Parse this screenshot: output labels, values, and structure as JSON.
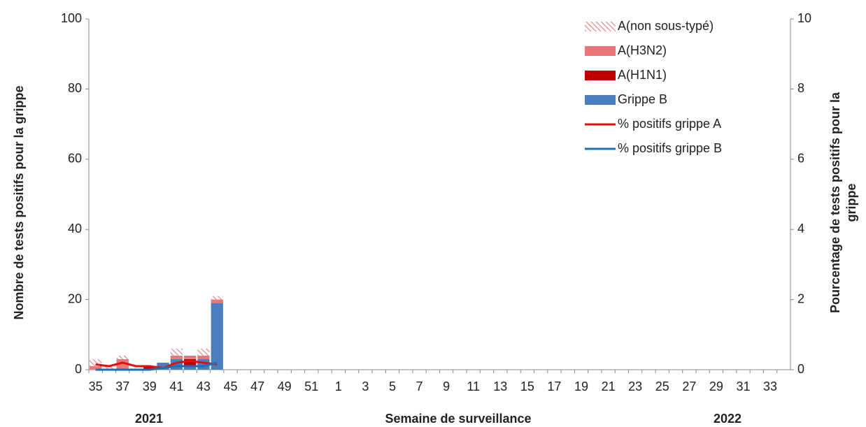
{
  "chart_data": {
    "type": "stacked-bar-line",
    "y_label": "Nombre de tests positifs pour la grippe",
    "y2_label": "Pourcentage de tests positifs pour la grippe",
    "x_label": "Semaine de surveillance",
    "annotations": [
      "2021",
      "2022"
    ],
    "categories": [
      "35",
      null,
      "37",
      null,
      "39",
      null,
      "41",
      null,
      "43",
      null,
      "45",
      null,
      "47",
      null,
      "49",
      null,
      "51",
      null,
      "1",
      null,
      "3",
      null,
      "5",
      null,
      "7",
      null,
      "9",
      null,
      "11",
      null,
      "13",
      null,
      "15",
      null,
      "17",
      null,
      "19",
      null,
      "21",
      null,
      "23",
      null,
      "25",
      null,
      "27",
      null,
      "29",
      null,
      "31",
      null,
      "33",
      null
    ],
    "series": [
      {
        "name": "A(non sous-typé)",
        "color": "#e89a9a",
        "hatch": true,
        "values": [
          2,
          1,
          1,
          0,
          0,
          0,
          2,
          0,
          2,
          1,
          null,
          null,
          null,
          null,
          null,
          null,
          null,
          null,
          null,
          null,
          null,
          null,
          null,
          null,
          null,
          null,
          null,
          null,
          null,
          null,
          null,
          null,
          null,
          null,
          null,
          null,
          null,
          null,
          null,
          null,
          null,
          null,
          null,
          null,
          null,
          null,
          null,
          null,
          null,
          null,
          null,
          null
        ]
      },
      {
        "name": "A(H3N2)",
        "color": "#e87878",
        "values": [
          1,
          0,
          3,
          0,
          0,
          0,
          1,
          1,
          1,
          1,
          null,
          null,
          null,
          null,
          null,
          null,
          null,
          null,
          null,
          null,
          null,
          null,
          null,
          null,
          null,
          null,
          null,
          null,
          null,
          null,
          null,
          null,
          null,
          null,
          null,
          null,
          null,
          null,
          null,
          null,
          null,
          null,
          null,
          null,
          null,
          null,
          null,
          null,
          null,
          null,
          null,
          null
        ]
      },
      {
        "name": "A(H1N1)",
        "color": "#c00000",
        "values": [
          0,
          0,
          0,
          0,
          1,
          0,
          0,
          2,
          0,
          0,
          null,
          null,
          null,
          null,
          null,
          null,
          null,
          null,
          null,
          null,
          null,
          null,
          null,
          null,
          null,
          null,
          null,
          null,
          null,
          null,
          null,
          null,
          null,
          null,
          null,
          null,
          null,
          null,
          null,
          null,
          null,
          null,
          null,
          null,
          null,
          null,
          null,
          null,
          null,
          null,
          null,
          null
        ]
      },
      {
        "name": "Grippe B",
        "color": "#4a7ebf",
        "values": [
          0,
          0,
          0,
          0,
          0,
          2,
          3,
          1,
          3,
          19,
          null,
          null,
          null,
          null,
          null,
          null,
          null,
          null,
          null,
          null,
          null,
          null,
          null,
          null,
          null,
          null,
          null,
          null,
          null,
          null,
          null,
          null,
          null,
          null,
          null,
          null,
          null,
          null,
          null,
          null,
          null,
          null,
          null,
          null,
          null,
          null,
          null,
          null,
          null,
          null,
          null,
          null
        ]
      },
      {
        "name": "% positifs grippe A",
        "color": "#e01010",
        "kind": "line",
        "axis": "y2",
        "values": [
          0.15,
          0.1,
          0.2,
          0.1,
          0.1,
          0.05,
          0.2,
          0.25,
          0.2,
          0.15,
          null,
          null,
          null,
          null,
          null,
          null,
          null,
          null,
          null,
          null,
          null,
          null,
          null,
          null,
          null,
          null,
          null,
          null,
          null,
          null,
          null,
          null,
          null,
          null,
          null,
          null,
          null,
          null,
          null,
          null,
          null,
          null,
          null,
          null,
          null,
          null,
          null,
          null,
          null,
          null,
          null,
          null
        ]
      },
      {
        "name": "% positifs grippe B",
        "color": "#1f6fb0",
        "kind": "line",
        "axis": "y2",
        "values": [
          0,
          0,
          0,
          0,
          0,
          0.05,
          0.1,
          0.1,
          0.1,
          0.2,
          null,
          null,
          null,
          null,
          null,
          null,
          null,
          null,
          null,
          null,
          null,
          null,
          null,
          null,
          null,
          null,
          null,
          null,
          null,
          null,
          null,
          null,
          null,
          null,
          null,
          null,
          null,
          null,
          null,
          null,
          null,
          null,
          null,
          null,
          null,
          null,
          null,
          null,
          null,
          null,
          null,
          null
        ]
      }
    ],
    "ylim": [
      0,
      100
    ],
    "yticks": [
      0,
      20,
      40,
      60,
      80,
      100
    ],
    "y2lim": [
      0,
      10
    ],
    "y2ticks": [
      0,
      2,
      4,
      6,
      8,
      10
    ],
    "grid": false,
    "legend": "upper right"
  }
}
